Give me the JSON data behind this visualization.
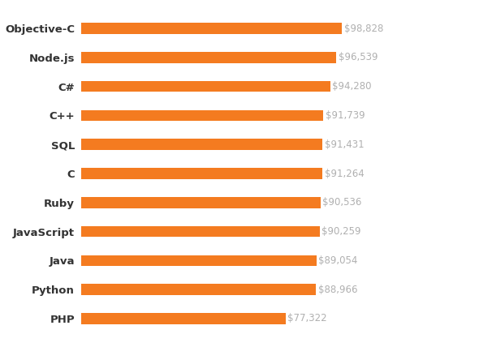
{
  "categories": [
    "Objective-C",
    "Node.js",
    "C#",
    "C++",
    "SQL",
    "C",
    "Ruby",
    "JavaScript",
    "Java",
    "Python",
    "PHP"
  ],
  "values": [
    98828,
    96539,
    94280,
    91739,
    91431,
    91264,
    90536,
    90259,
    89054,
    88966,
    77322
  ],
  "labels": [
    "$98,828",
    "$96,539",
    "$94,280",
    "$91,739",
    "$91,431",
    "$91,264",
    "$90,536",
    "$90,259",
    "$89,054",
    "$88,966",
    "$77,322"
  ],
  "bar_color": "#F47B20",
  "label_color": "#b0b0b0",
  "category_color": "#333333",
  "background_color": "#ffffff",
  "bar_height": 0.38,
  "xlim": [
    0,
    118000
  ],
  "figsize": [
    5.9,
    4.28
  ],
  "dpi": 100,
  "label_fontsize": 8.5,
  "category_fontsize": 9.5
}
